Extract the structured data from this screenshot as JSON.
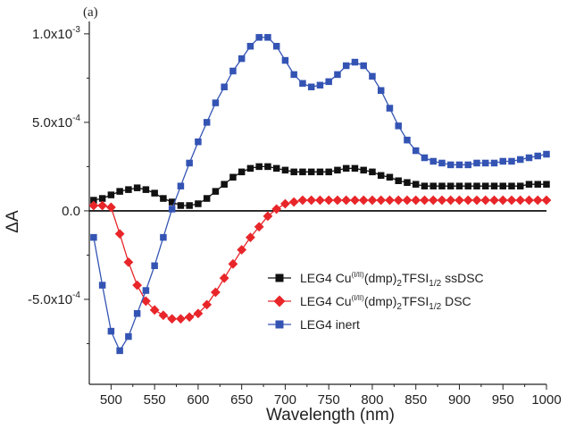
{
  "chart_data": {
    "type": "line",
    "panel_label": "(a)",
    "xlabel": "Wavelength (nm)",
    "ylabel": "ΔA",
    "xlim": [
      475,
      1000
    ],
    "ylim": [
      -0.00098,
      0.00107
    ],
    "x_ticks": [
      500,
      550,
      600,
      650,
      700,
      750,
      800,
      850,
      900,
      950,
      1000
    ],
    "x_tick_labels": [
      "500",
      "550",
      "600",
      "650",
      "700",
      "750",
      "800",
      "850",
      "900",
      "950",
      "1000"
    ],
    "y_ticks": [
      0.001,
      0.0005,
      0,
      -0.0005
    ],
    "y_tick_labels": [
      {
        "base": "1.0x10",
        "exp": "-3"
      },
      {
        "base": "5.0x10",
        "exp": "-4"
      },
      {
        "base": "0.0",
        "exp": ""
      },
      {
        "base": "-5.0x10",
        "exp": "-4"
      }
    ],
    "zero_line": true,
    "grid": false,
    "legend_position": "lower-right",
    "series": [
      {
        "legend_parts": [
          "LEG4 Cu",
          "(I/II)",
          "(dmp)",
          "2",
          "TFSI",
          "1/2",
          " ssDSC"
        ],
        "color": "#111111",
        "marker": "square",
        "points": [
          [
            480,
            6e-05
          ],
          [
            490,
            7e-05
          ],
          [
            500,
            9e-05
          ],
          [
            510,
            0.00011
          ],
          [
            520,
            0.00012
          ],
          [
            530,
            0.00013
          ],
          [
            540,
            0.00012
          ],
          [
            550,
            0.0001
          ],
          [
            560,
            7e-05
          ],
          [
            570,
            5e-05
          ],
          [
            580,
            3e-05
          ],
          [
            590,
            3e-05
          ],
          [
            600,
            4e-05
          ],
          [
            610,
            7e-05
          ],
          [
            620,
            0.00011
          ],
          [
            630,
            0.00015
          ],
          [
            640,
            0.00019
          ],
          [
            650,
            0.00022
          ],
          [
            660,
            0.00024
          ],
          [
            670,
            0.00025
          ],
          [
            680,
            0.00025
          ],
          [
            690,
            0.00024
          ],
          [
            700,
            0.00023
          ],
          [
            710,
            0.00022
          ],
          [
            720,
            0.00022
          ],
          [
            730,
            0.00022
          ],
          [
            740,
            0.00022
          ],
          [
            750,
            0.00022
          ],
          [
            760,
            0.00023
          ],
          [
            770,
            0.00024
          ],
          [
            780,
            0.00024
          ],
          [
            790,
            0.00023
          ],
          [
            800,
            0.00022
          ],
          [
            810,
            0.0002
          ],
          [
            820,
            0.00019
          ],
          [
            830,
            0.00017
          ],
          [
            840,
            0.00016
          ],
          [
            850,
            0.00015
          ],
          [
            860,
            0.00014
          ],
          [
            870,
            0.00014
          ],
          [
            880,
            0.00014
          ],
          [
            890,
            0.00014
          ],
          [
            900,
            0.00014
          ],
          [
            910,
            0.00014
          ],
          [
            920,
            0.00014
          ],
          [
            930,
            0.00014
          ],
          [
            940,
            0.00014
          ],
          [
            950,
            0.00014
          ],
          [
            960,
            0.00014
          ],
          [
            970,
            0.00014
          ],
          [
            980,
            0.00015
          ],
          [
            990,
            0.00015
          ],
          [
            1000,
            0.00015
          ]
        ]
      },
      {
        "legend_parts": [
          "LEG4 Cu",
          "(I/II)",
          "(dmp)",
          "2",
          "TFSI",
          "1/2",
          " DSC"
        ],
        "color": "#e8262a",
        "marker": "diamond",
        "points": [
          [
            480,
            3e-05
          ],
          [
            490,
            3e-05
          ],
          [
            500,
            2e-05
          ],
          [
            510,
            -0.00013
          ],
          [
            520,
            -0.00029
          ],
          [
            530,
            -0.00042
          ],
          [
            540,
            -0.00051
          ],
          [
            550,
            -0.00056
          ],
          [
            560,
            -0.00059
          ],
          [
            570,
            -0.00061
          ],
          [
            580,
            -0.00061
          ],
          [
            590,
            -0.0006
          ],
          [
            600,
            -0.00058
          ],
          [
            610,
            -0.00053
          ],
          [
            620,
            -0.00046
          ],
          [
            630,
            -0.00038
          ],
          [
            640,
            -0.0003
          ],
          [
            650,
            -0.00022
          ],
          [
            660,
            -0.00015
          ],
          [
            670,
            -9e-05
          ],
          [
            680,
            -3e-05
          ],
          [
            690,
            1e-05
          ],
          [
            700,
            4e-05
          ],
          [
            710,
            5e-05
          ],
          [
            720,
            6e-05
          ],
          [
            730,
            6e-05
          ],
          [
            740,
            6e-05
          ],
          [
            750,
            6e-05
          ],
          [
            760,
            6e-05
          ],
          [
            770,
            6e-05
          ],
          [
            780,
            6e-05
          ],
          [
            790,
            6e-05
          ],
          [
            800,
            6e-05
          ],
          [
            810,
            6e-05
          ],
          [
            820,
            6e-05
          ],
          [
            830,
            6e-05
          ],
          [
            840,
            6e-05
          ],
          [
            850,
            6e-05
          ],
          [
            860,
            6e-05
          ],
          [
            870,
            6e-05
          ],
          [
            880,
            6e-05
          ],
          [
            890,
            6e-05
          ],
          [
            900,
            6e-05
          ],
          [
            910,
            6e-05
          ],
          [
            920,
            6e-05
          ],
          [
            930,
            6e-05
          ],
          [
            940,
            6e-05
          ],
          [
            950,
            6e-05
          ],
          [
            960,
            6e-05
          ],
          [
            970,
            6e-05
          ],
          [
            980,
            6e-05
          ],
          [
            990,
            6e-05
          ],
          [
            1000,
            6e-05
          ]
        ]
      },
      {
        "legend_parts": [
          "LEG4 inert"
        ],
        "color": "#3454b4",
        "marker": "square",
        "points": [
          [
            480,
            -0.00015
          ],
          [
            490,
            -0.00042
          ],
          [
            500,
            -0.00068
          ],
          [
            510,
            -0.00079
          ],
          [
            520,
            -0.00071
          ],
          [
            530,
            -0.00058
          ],
          [
            540,
            -0.00045
          ],
          [
            550,
            -0.00031
          ],
          [
            560,
            -0.00015
          ],
          [
            570,
            1e-05
          ],
          [
            580,
            0.00014
          ],
          [
            590,
            0.00027
          ],
          [
            600,
            0.00039
          ],
          [
            610,
            0.0005
          ],
          [
            620,
            0.00061
          ],
          [
            630,
            0.0007
          ],
          [
            640,
            0.00079
          ],
          [
            650,
            0.00086
          ],
          [
            660,
            0.00093
          ],
          [
            670,
            0.00098
          ],
          [
            680,
            0.00098
          ],
          [
            690,
            0.00093
          ],
          [
            700,
            0.00085
          ],
          [
            710,
            0.00077
          ],
          [
            720,
            0.00072
          ],
          [
            730,
            0.0007
          ],
          [
            740,
            0.00071
          ],
          [
            750,
            0.00073
          ],
          [
            760,
            0.00077
          ],
          [
            770,
            0.00082
          ],
          [
            780,
            0.00084
          ],
          [
            790,
            0.00082
          ],
          [
            800,
            0.00076
          ],
          [
            810,
            0.00068
          ],
          [
            820,
            0.00058
          ],
          [
            830,
            0.00048
          ],
          [
            840,
            0.0004
          ],
          [
            850,
            0.00034
          ],
          [
            860,
            0.0003
          ],
          [
            870,
            0.00028
          ],
          [
            880,
            0.00027
          ],
          [
            890,
            0.00026
          ],
          [
            900,
            0.00026
          ],
          [
            910,
            0.00026
          ],
          [
            920,
            0.00027
          ],
          [
            930,
            0.00027
          ],
          [
            940,
            0.00027
          ],
          [
            950,
            0.00028
          ],
          [
            960,
            0.00028
          ],
          [
            970,
            0.00029
          ],
          [
            980,
            0.0003
          ],
          [
            990,
            0.00031
          ],
          [
            1000,
            0.00032
          ]
        ]
      }
    ]
  }
}
